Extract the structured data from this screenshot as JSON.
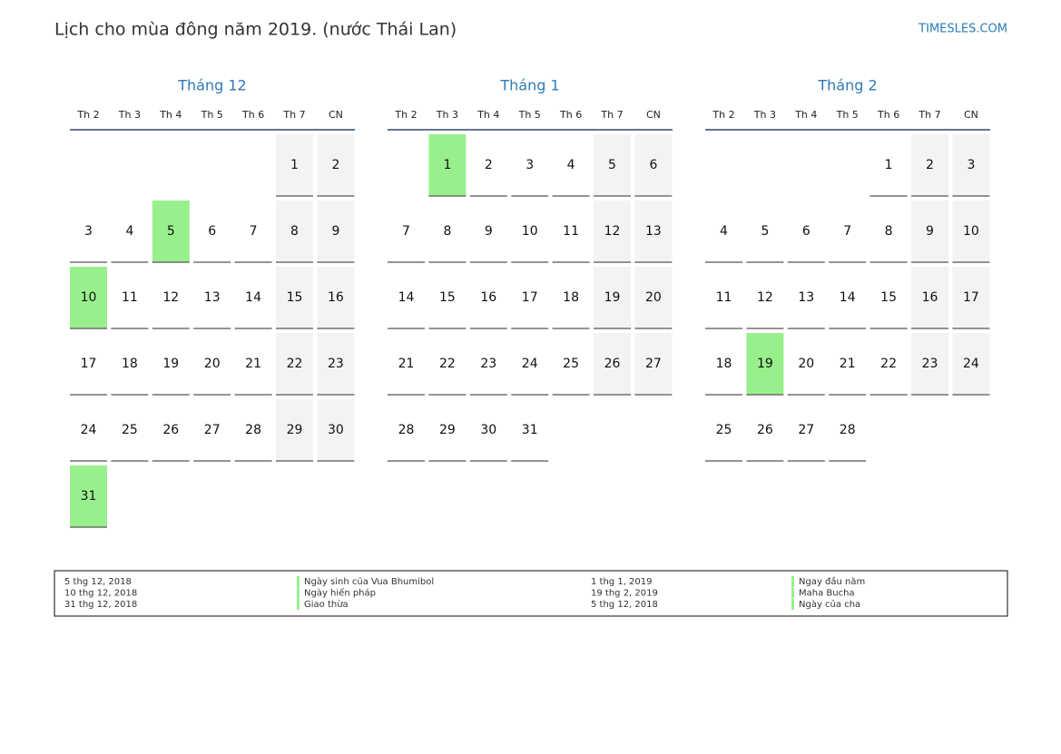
{
  "header": {
    "title": "Lịch cho mùa đông năm 2019. (nước Thái Lan)",
    "site": "TIMESLES.COM"
  },
  "weekdays": [
    "Th 2",
    "Th 3",
    "Th 4",
    "Th 5",
    "Th 6",
    "Th 7",
    "CN"
  ],
  "months": [
    {
      "name": "Tháng 12",
      "highlight": [
        5,
        10,
        31
      ],
      "weeks": [
        [
          null,
          null,
          null,
          null,
          null,
          1,
          2
        ],
        [
          3,
          4,
          5,
          6,
          7,
          8,
          9
        ],
        [
          10,
          11,
          12,
          13,
          14,
          15,
          16
        ],
        [
          17,
          18,
          19,
          20,
          21,
          22,
          23
        ],
        [
          24,
          25,
          26,
          27,
          28,
          29,
          30
        ],
        [
          31,
          null,
          null,
          null,
          null,
          null,
          null
        ]
      ]
    },
    {
      "name": "Tháng 1",
      "highlight": [
        1
      ],
      "weeks": [
        [
          null,
          1,
          2,
          3,
          4,
          5,
          6
        ],
        [
          7,
          8,
          9,
          10,
          11,
          12,
          13
        ],
        [
          14,
          15,
          16,
          17,
          18,
          19,
          20
        ],
        [
          21,
          22,
          23,
          24,
          25,
          26,
          27
        ],
        [
          28,
          29,
          30,
          31,
          null,
          null,
          null
        ]
      ]
    },
    {
      "name": "Tháng 2",
      "highlight": [
        19
      ],
      "weeks": [
        [
          null,
          null,
          null,
          null,
          1,
          2,
          3
        ],
        [
          4,
          5,
          6,
          7,
          8,
          9,
          10
        ],
        [
          11,
          12,
          13,
          14,
          15,
          16,
          17
        ],
        [
          18,
          19,
          20,
          21,
          22,
          23,
          24
        ],
        [
          25,
          26,
          27,
          28,
          null,
          null,
          null
        ]
      ]
    }
  ],
  "legend": {
    "color": "#98f08c",
    "columns": [
      [
        {
          "date": "5 thg 12, 2018",
          "name": "Ngày sinh của Vua Bhumibol"
        },
        {
          "date": "10 thg 12, 2018",
          "name": "Ngày hiến pháp"
        },
        {
          "date": "31 thg 12, 2018",
          "name": "Giao thừa"
        }
      ],
      [
        {
          "date": "1 thg 1, 2019",
          "name": "Ngay đầu năm"
        },
        {
          "date": "19 thg 2, 2019",
          "name": "Maha Bucha"
        },
        {
          "date": "5 thg 12, 2018",
          "name": "Ngày của cha"
        }
      ]
    ]
  }
}
